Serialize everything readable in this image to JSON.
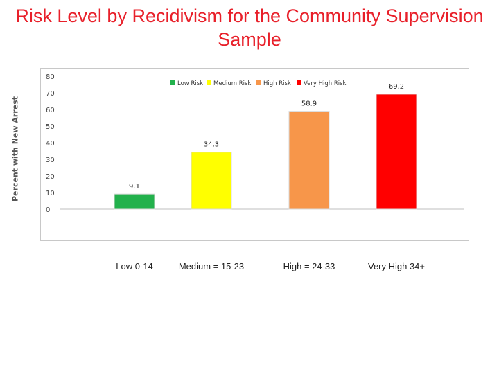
{
  "slide": {
    "title": "Risk Level by Recidivism for the Community Supervision Sample"
  },
  "chart_data": {
    "type": "bar",
    "title": "",
    "xlabel": "",
    "ylabel": "Percent with New Arrest",
    "ylim": [
      0,
      80
    ],
    "yticks": [
      0,
      10,
      20,
      30,
      40,
      50,
      60,
      70,
      80
    ],
    "grid": false,
    "legend_position": "top",
    "categories": [
      "Low 0-14",
      "Medium = 15-23",
      "High = 24-33",
      "Very High 34+"
    ],
    "series": [
      {
        "name": "Low Risk",
        "color": "#22b14c",
        "values": [
          9.1,
          null,
          null,
          null
        ]
      },
      {
        "name": "Medium Risk",
        "color": "#ffff00",
        "values": [
          null,
          34.3,
          null,
          null
        ]
      },
      {
        "name": "High Risk",
        "color": "#f7964a",
        "values": [
          null,
          null,
          58.9,
          null
        ]
      },
      {
        "name": "Very High Risk",
        "color": "#ff0000",
        "values": [
          null,
          null,
          null,
          69.2
        ]
      }
    ],
    "data_labels": [
      "9.1",
      "34.3",
      "58.9",
      "69.2"
    ]
  }
}
